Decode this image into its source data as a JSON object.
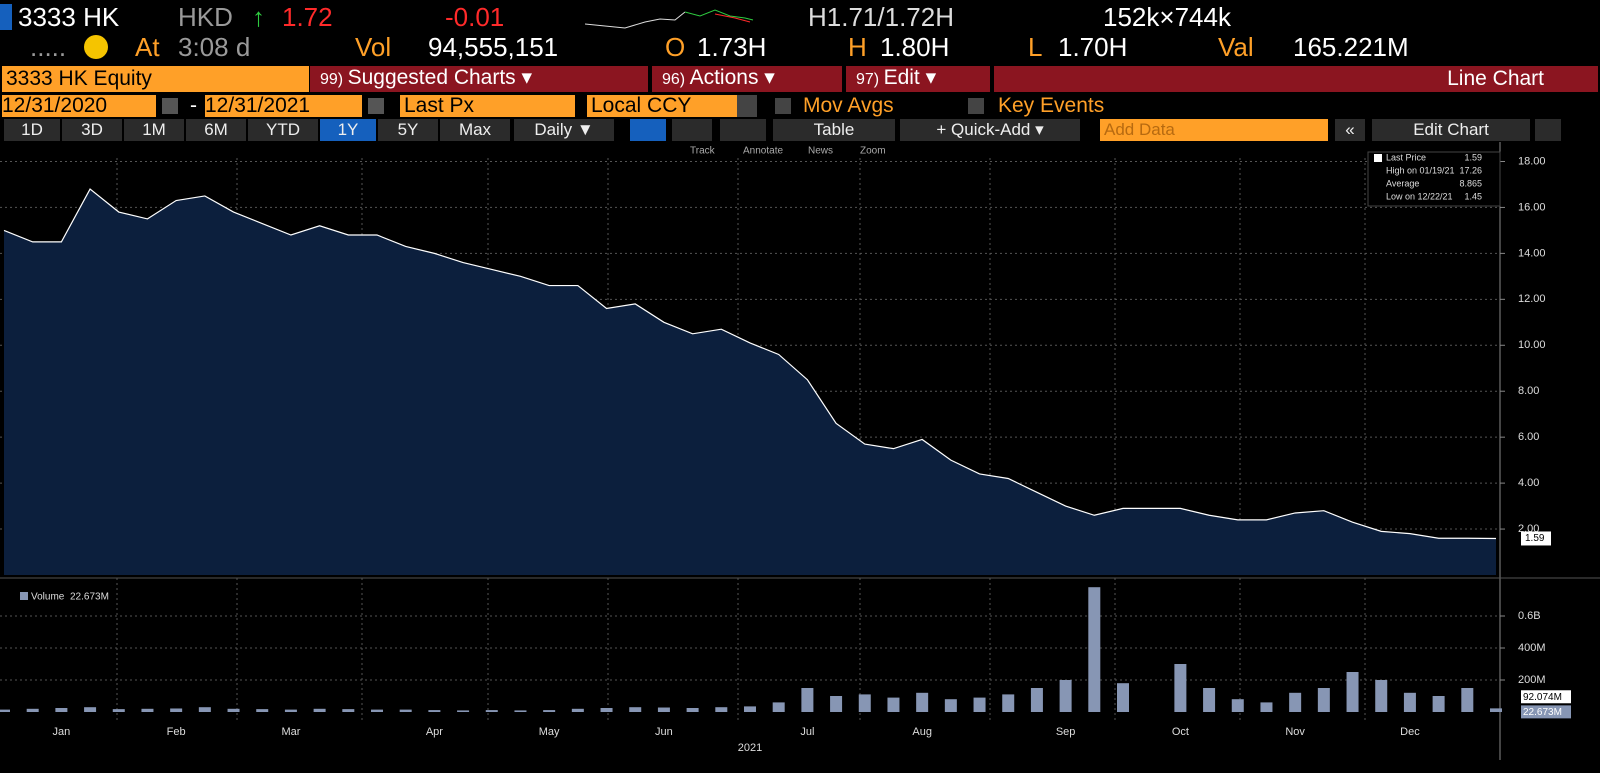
{
  "quote": {
    "ticker": "3333 HK",
    "currency": "HKD",
    "arrow": "↑",
    "last": "1.72",
    "change": "-0.01",
    "bid_ask": "H1.71/1.72H",
    "size": "152k×744k",
    "dots": ".....",
    "time_label": "At",
    "time": "3:08 d",
    "vol_label": "Vol",
    "vol": "94,555,151",
    "open_label": "O",
    "open": "1.73H",
    "high_label": "H",
    "high": "1.80H",
    "low_label": "L",
    "low": "1.70H",
    "val_label": "Val",
    "val": "165.221M"
  },
  "menu": {
    "security": "3333 HK Equity",
    "suggested_num": "99)",
    "suggested": "Suggested Charts ▾",
    "actions_num": "96)",
    "actions": "Actions ▾",
    "edit_num": "97)",
    "edit": "Edit ▾",
    "chart_type": "Line Chart"
  },
  "controls": {
    "start": "12/31/2020",
    "sep": "-",
    "end": "12/31/2021",
    "field": "Last Px",
    "ccy": "Local CCY",
    "mov_avgs": "Mov Avgs",
    "key_events": "Key Events"
  },
  "toolbar": {
    "periods": [
      "1D",
      "3D",
      "1M",
      "6M",
      "YTD",
      "1Y",
      "5Y",
      "Max"
    ],
    "active": "1Y",
    "frequency": "Daily ▼",
    "table": "Table",
    "quick_add": "+ Quick-Add ▾",
    "add_data": "Add Data",
    "back": "«",
    "edit_chart": "Edit Chart"
  },
  "chart_tools": [
    "Track",
    "Annotate",
    "News",
    "Zoom"
  ],
  "chart_data": [
    {
      "type": "area",
      "series": [
        {
          "name": "Last Price",
          "color": "#ffffff",
          "values": [
            15,
            14.5,
            14.5,
            16.8,
            15.8,
            15.5,
            16.3,
            16.5,
            15.8,
            15.3,
            14.8,
            15.2,
            14.8,
            14.8,
            14.3,
            14,
            13.6,
            13.3,
            13,
            12.6,
            12.6,
            11.6,
            11.8,
            11,
            10.5,
            10.7,
            10.1,
            9.6,
            8.5,
            6.6,
            5.7,
            5.5,
            5.9,
            5,
            4.4,
            4.2,
            3.6,
            3,
            2.6,
            2.9,
            2.9,
            2.9,
            2.6,
            2.4,
            2.4,
            2.7,
            2.8,
            2.3,
            1.9,
            1.8,
            1.6,
            1.6,
            1.59
          ]
        }
      ],
      "fill": "#0c1f3d",
      "ylim": [
        0,
        18.5
      ],
      "yticks": [
        {
          "value": 2,
          "label": "2.00"
        },
        {
          "value": 4,
          "label": "4.00"
        },
        {
          "value": 6,
          "label": "6.00"
        },
        {
          "value": 8,
          "label": "8.00"
        },
        {
          "value": 10,
          "label": "10.00"
        },
        {
          "value": 12,
          "label": "12.00"
        },
        {
          "value": 14,
          "label": "14.00"
        },
        {
          "value": 16,
          "label": "16.00"
        },
        {
          "value": 18,
          "label": "18.00"
        }
      ],
      "legend": {
        "last_label": "Last Price",
        "last": 1.59,
        "high_label": "High on 01/19/21",
        "high": 17.26,
        "avg_label": "Average",
        "avg": 8.865,
        "low_label": "Low on 12/22/21",
        "low": 1.45
      },
      "grid": true
    },
    {
      "type": "bar",
      "categories": [
        null,
        null,
        "Jan",
        null,
        null,
        null,
        "Feb",
        null,
        null,
        null,
        "Mar",
        null,
        null,
        null,
        null,
        "Apr",
        null,
        null,
        null,
        "May",
        null,
        null,
        null,
        "Jun",
        null,
        null,
        null,
        null,
        "Jul",
        null,
        null,
        null,
        "Aug",
        null,
        null,
        null,
        null,
        "Sep",
        null,
        null,
        null,
        "Oct",
        null,
        null,
        null,
        "Nov",
        null,
        null,
        null,
        "Dec",
        null,
        null,
        null
      ],
      "x_label": "2021",
      "series": [
        {
          "name": "Volume",
          "color": "#8796b4",
          "values": [
            15000000,
            20000000,
            25000000,
            30000000,
            18000000,
            20000000,
            22000000,
            30000000,
            20000000,
            18000000,
            15000000,
            20000000,
            18000000,
            15000000,
            15000000,
            12000000,
            10000000,
            12000000,
            10000000,
            12000000,
            20000000,
            25000000,
            30000000,
            28000000,
            25000000,
            30000000,
            35000000,
            60000000,
            150000000,
            100000000,
            110000000,
            90000000,
            120000000,
            80000000,
            90000000,
            110000000,
            150000000,
            200000000,
            780000000,
            180000000,
            null,
            300000000,
            150000000,
            80000000,
            60000000,
            120000000,
            150000000,
            250000000,
            200000000,
            120000000,
            100000000,
            150000000,
            22673000
          ],
          "value_labels": {
            "52": "22.673M"
          }
        }
      ],
      "avg": {
        "value": 92074000,
        "label": "92.074M"
      },
      "ylim": [
        0,
        800000000
      ],
      "yticks": [
        {
          "value": 200000000,
          "label": "200M"
        },
        {
          "value": 400000000,
          "label": "400M"
        },
        {
          "value": 600000000,
          "label": "0.6B"
        }
      ],
      "grid": true
    }
  ]
}
